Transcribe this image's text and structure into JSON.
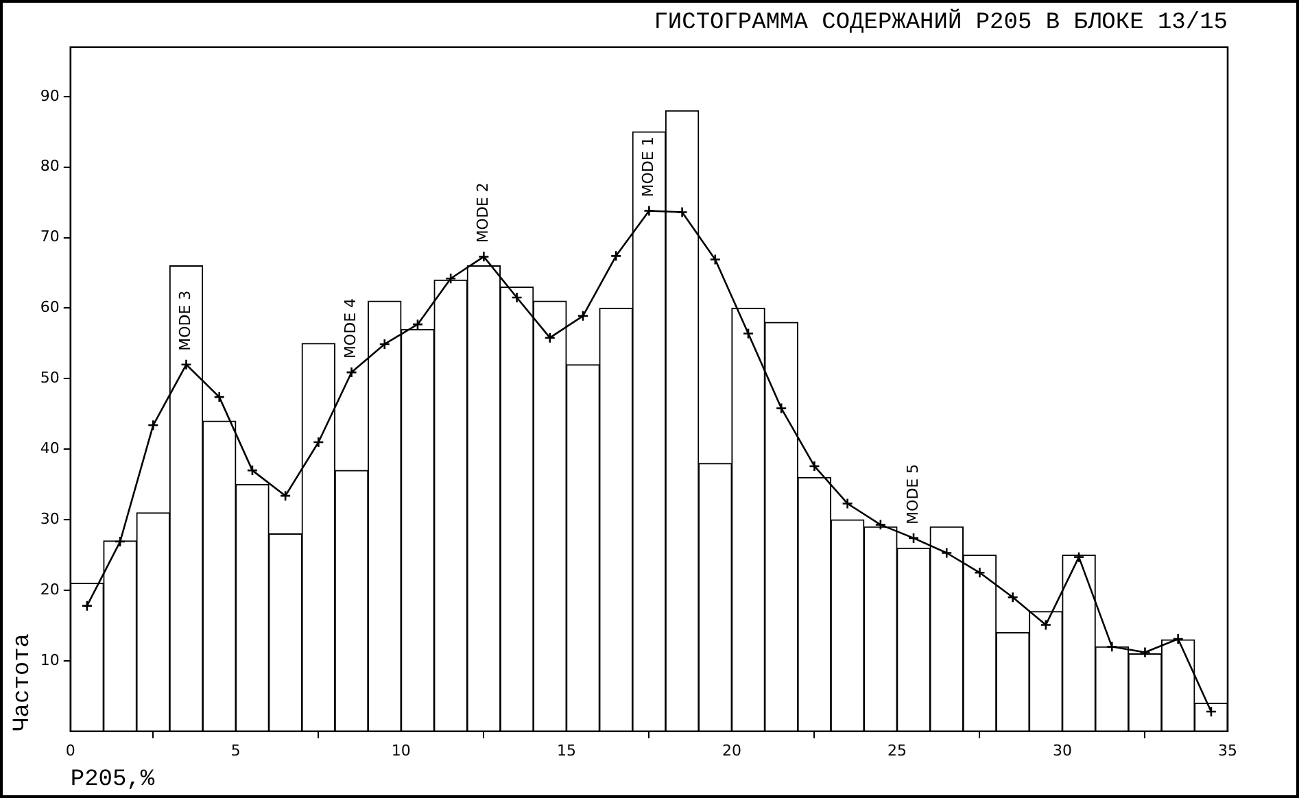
{
  "chart_data": {
    "type": "histogram",
    "title": "ГИСТОГРАММА СОДЕРЖАНИЙ P205 В БЛОКЕ 13/15",
    "xlabel": "P205,%",
    "ylabel": "Частота",
    "xlim": [
      0,
      35
    ],
    "xticks": [
      0,
      5,
      10,
      15,
      20,
      25,
      30,
      35
    ],
    "ylim": [
      0,
      97
    ],
    "yticks": [
      10,
      20,
      30,
      40,
      50,
      60,
      70,
      80,
      90
    ],
    "grid": false,
    "legend": false,
    "bins": [
      0,
      1,
      2,
      3,
      4,
      5,
      6,
      7,
      8,
      9,
      10,
      11,
      12,
      13,
      14,
      15,
      16,
      17,
      18,
      19,
      20,
      21,
      22,
      23,
      24,
      25,
      26,
      27,
      28,
      29,
      30,
      31,
      32,
      33,
      34,
      35
    ],
    "values": [
      21,
      27,
      31,
      66,
      44,
      35,
      28,
      55,
      37,
      61,
      57,
      64,
      66,
      63,
      61,
      52,
      60,
      85,
      88,
      38,
      60,
      58,
      36,
      30,
      29,
      26,
      29,
      25,
      14,
      17,
      25,
      12,
      11,
      13,
      4
    ],
    "color": "#ffffff",
    "series": [
      {
        "type": "line",
        "color": "#000000",
        "marker": "cross",
        "line_style": "solid",
        "x": [
          0.5,
          1.5,
          2.5,
          3.5,
          4.5,
          5.5,
          6.5,
          7.5,
          8.5,
          9.5,
          10.5,
          11.5,
          12.5,
          13.5,
          14.5,
          15.5,
          16.5,
          17.5,
          18.5,
          19.5,
          20.5,
          21.5,
          22.5,
          23.5,
          24.5,
          25.5,
          26.5,
          27.5,
          28.5,
          29.5,
          30.5,
          31.5,
          32.5,
          33.5,
          34.5
        ],
        "values": [
          17.8,
          26.9,
          43.4,
          52,
          47.4,
          37,
          33.4,
          41,
          50.9,
          54.9,
          57.7,
          64.2,
          67.3,
          61.5,
          55.8,
          58.9,
          67.4,
          73.8,
          73.6,
          66.9,
          56.4,
          45.8,
          37.6,
          32.3,
          29.3,
          27.4,
          25.3,
          22.5,
          19,
          15.1,
          24.7,
          12,
          11.2,
          13.1,
          2.8
        ]
      }
    ],
    "annotations": [
      {
        "text": "MODE 3",
        "x": 3.5,
        "y": 52
      },
      {
        "text": "MODE 4",
        "x": 8.5,
        "y": 50.9
      },
      {
        "text": "MODE 2",
        "x": 12.5,
        "y": 67.3
      },
      {
        "text": "MODE 1",
        "x": 17.5,
        "y": 73.8
      },
      {
        "text": "MODE 5",
        "x": 25.5,
        "y": 27.4
      }
    ]
  }
}
